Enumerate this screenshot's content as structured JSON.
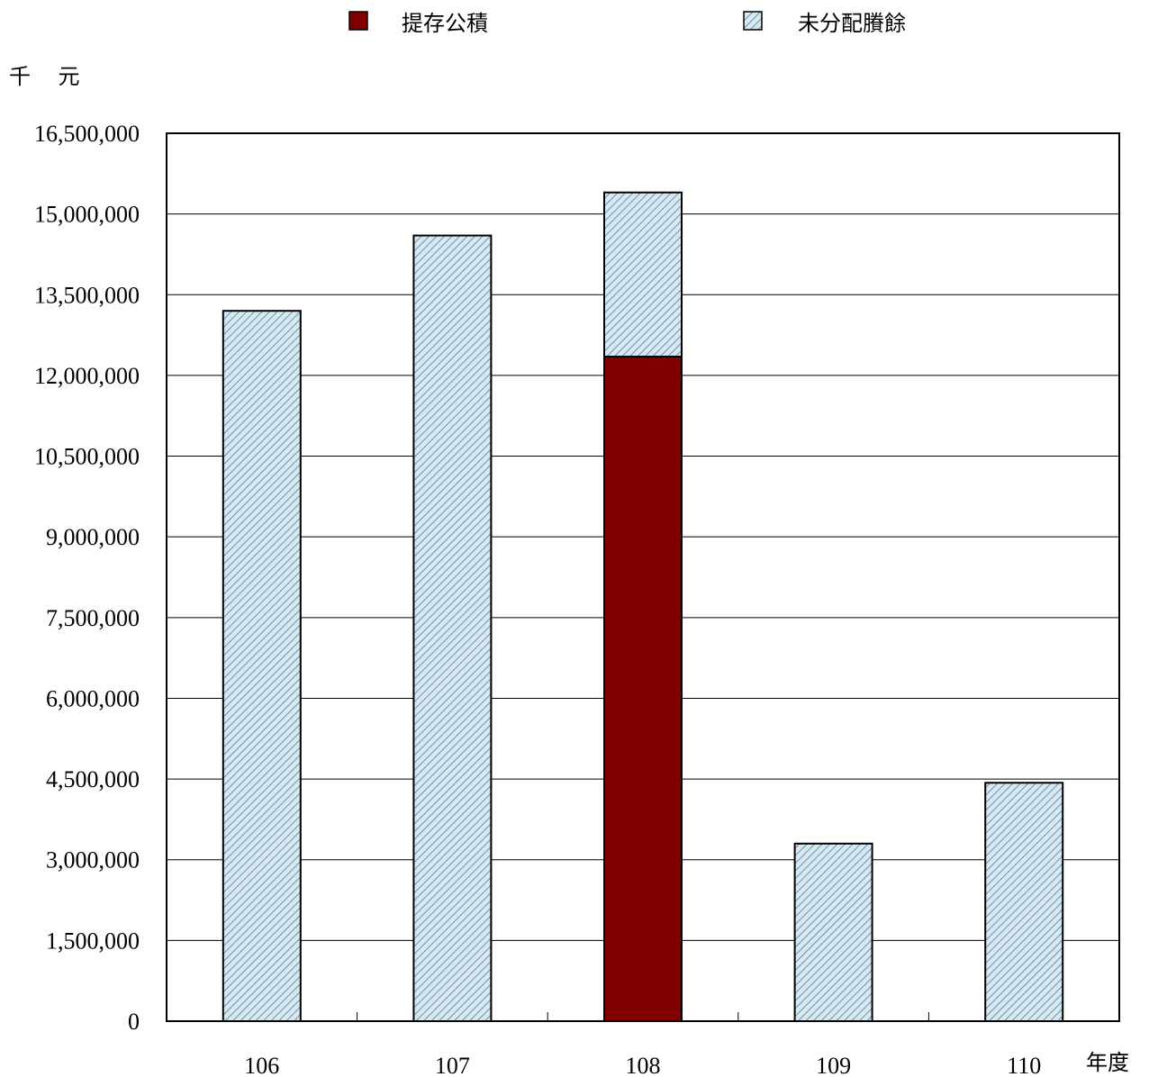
{
  "chart_data": {
    "type": "bar",
    "stacked": true,
    "categories": [
      "106",
      "107",
      "108",
      "109",
      "110"
    ],
    "series": [
      {
        "name": "提存公積",
        "color": "#800000",
        "pattern": "solid",
        "values": [
          0,
          0,
          12350000,
          0,
          0
        ]
      },
      {
        "name": "未分配賸餘",
        "color": "#cfe3ee",
        "pattern": "diagonal-hatch",
        "values": [
          13200000,
          14600000,
          3050000,
          3300000,
          4430000
        ]
      }
    ],
    "ylabel": "千    元",
    "xlabel": "年度",
    "ylim": [
      0,
      16500000
    ],
    "yticks": [
      0,
      1500000,
      3000000,
      4500000,
      6000000,
      7500000,
      9000000,
      10500000,
      12000000,
      13500000,
      15000000,
      16500000
    ],
    "ytick_labels": [
      "0",
      "1,500,000",
      "3,000,000",
      "4,500,000",
      "6,000,000",
      "7,500,000",
      "9,000,000",
      "10,500,000",
      "12,000,000",
      "13,500,000",
      "15,000,000",
      "16,500,000"
    ],
    "grid": "horizontal",
    "legend": "top-center"
  }
}
